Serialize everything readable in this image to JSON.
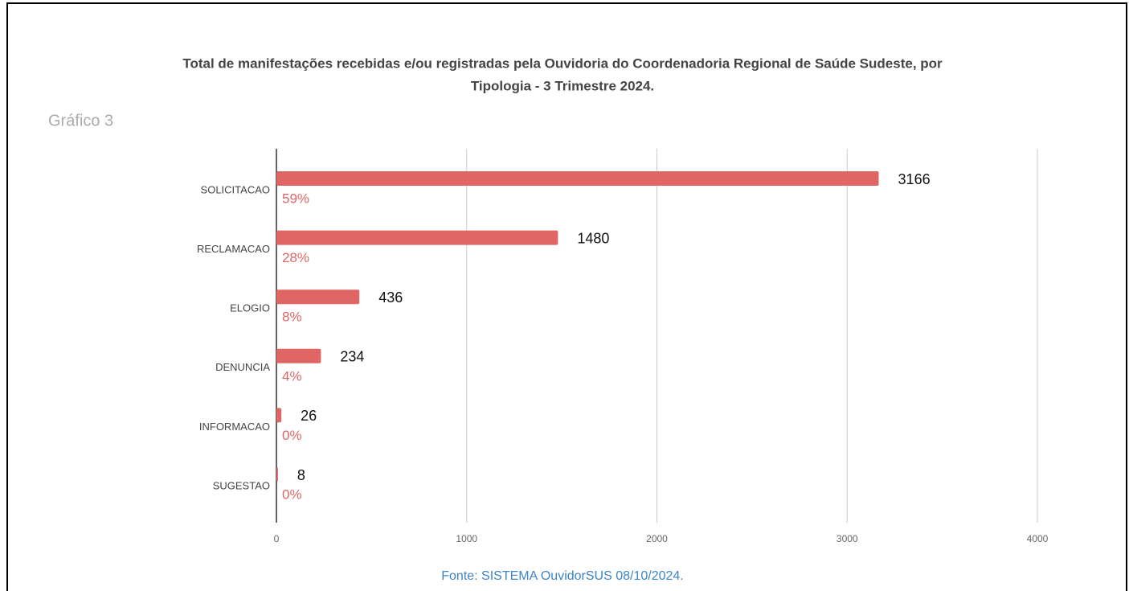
{
  "chart_data": {
    "type": "bar",
    "orientation": "horizontal",
    "title": [
      "Total de manifestações recebidas e/ou registradas pela Ouvidoria do Coordenadoria Regional de Saúde Sudeste, por",
      "Tipologia - 3 Trimestre 2024."
    ],
    "subtitle": "Gráfico 3",
    "categories": [
      "SOLICITACAO",
      "RECLAMACAO",
      "ELOGIO",
      "DENUNCIA",
      "INFORMACAO",
      "SUGESTAO"
    ],
    "values": [
      3166,
      1480,
      436,
      234,
      26,
      8
    ],
    "percent_values": [
      59,
      28,
      8,
      4,
      0,
      0
    ],
    "percent_labels": [
      "59%",
      "28%",
      "8%",
      "4%",
      "0%",
      "0%"
    ],
    "color": "#e06666",
    "xlim": [
      0,
      4000
    ],
    "xticks": [
      0,
      1000,
      2000,
      3000,
      4000
    ],
    "grid": true,
    "source": "Fonte: SISTEMA OuvidorSUS 08/10/2024."
  }
}
